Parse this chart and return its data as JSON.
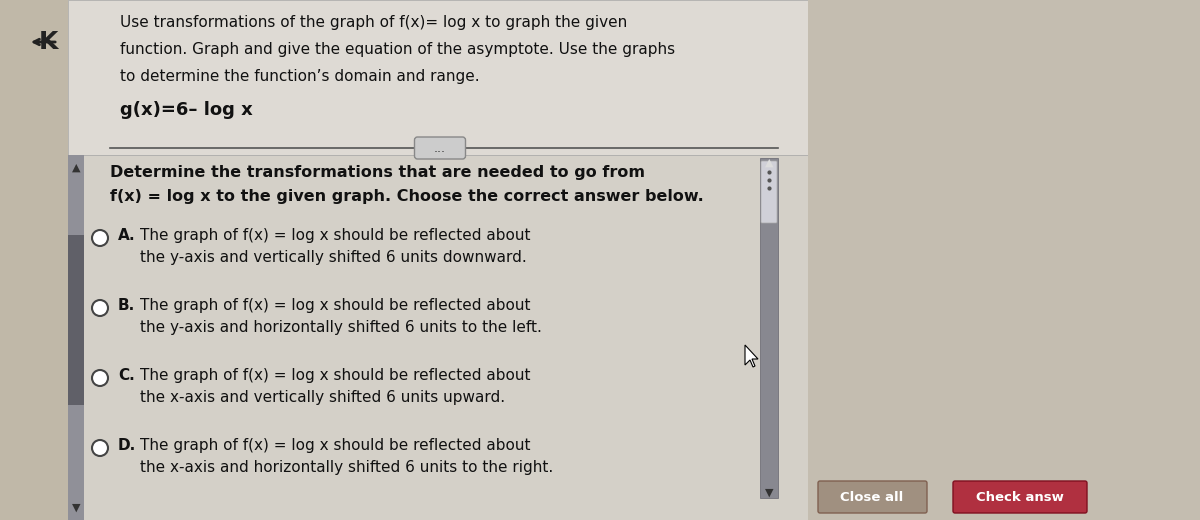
{
  "bg_outer": "#b8a898",
  "bg_main": "#d0cac0",
  "bg_top_panel": "#ddd8d0",
  "bg_bottom": "#c8c0b4",
  "sidebar_color": "#888890",
  "sidebar_thumb_color": "#606068",
  "scrollbar_bg": "#808088",
  "scrollbar_thumb": "#505058",
  "title_lines": [
    "Use transformations of the graph of f(x)= log x to graph the given",
    "function. Graph and give the equation of the asymptote. Use the graphs",
    "to determine the function’s domain and range."
  ],
  "function_label": "g(x)=6– log x",
  "question_lines": [
    "Determine the transformations that are needed to go from",
    "f(x) = log x to the given graph. Choose the correct answer below."
  ],
  "options": [
    {
      "letter": "A.",
      "lines": [
        "The graph of f(x) = log x should be reflected about",
        "the y-axis and vertically shifted 6 units downward."
      ]
    },
    {
      "letter": "B.",
      "lines": [
        "The graph of f(x) = log x should be reflected about",
        "the y-axis and horizontally shifted 6 units to the left."
      ]
    },
    {
      "letter": "C.",
      "lines": [
        "The graph of f(x) = log x should be reflected about",
        "the x-axis and vertically shifted 6 units upward."
      ]
    },
    {
      "letter": "D.",
      "lines": [
        "The graph of f(x) = log x should be reflected about",
        "the x-axis and horizontally shifted 6 units to the right."
      ]
    }
  ],
  "check_btn_color": "#b03040",
  "close_btn_color": "#a09080",
  "text_color": "#111111",
  "divider_color": "#555555",
  "panel_edge_color": "#999999"
}
